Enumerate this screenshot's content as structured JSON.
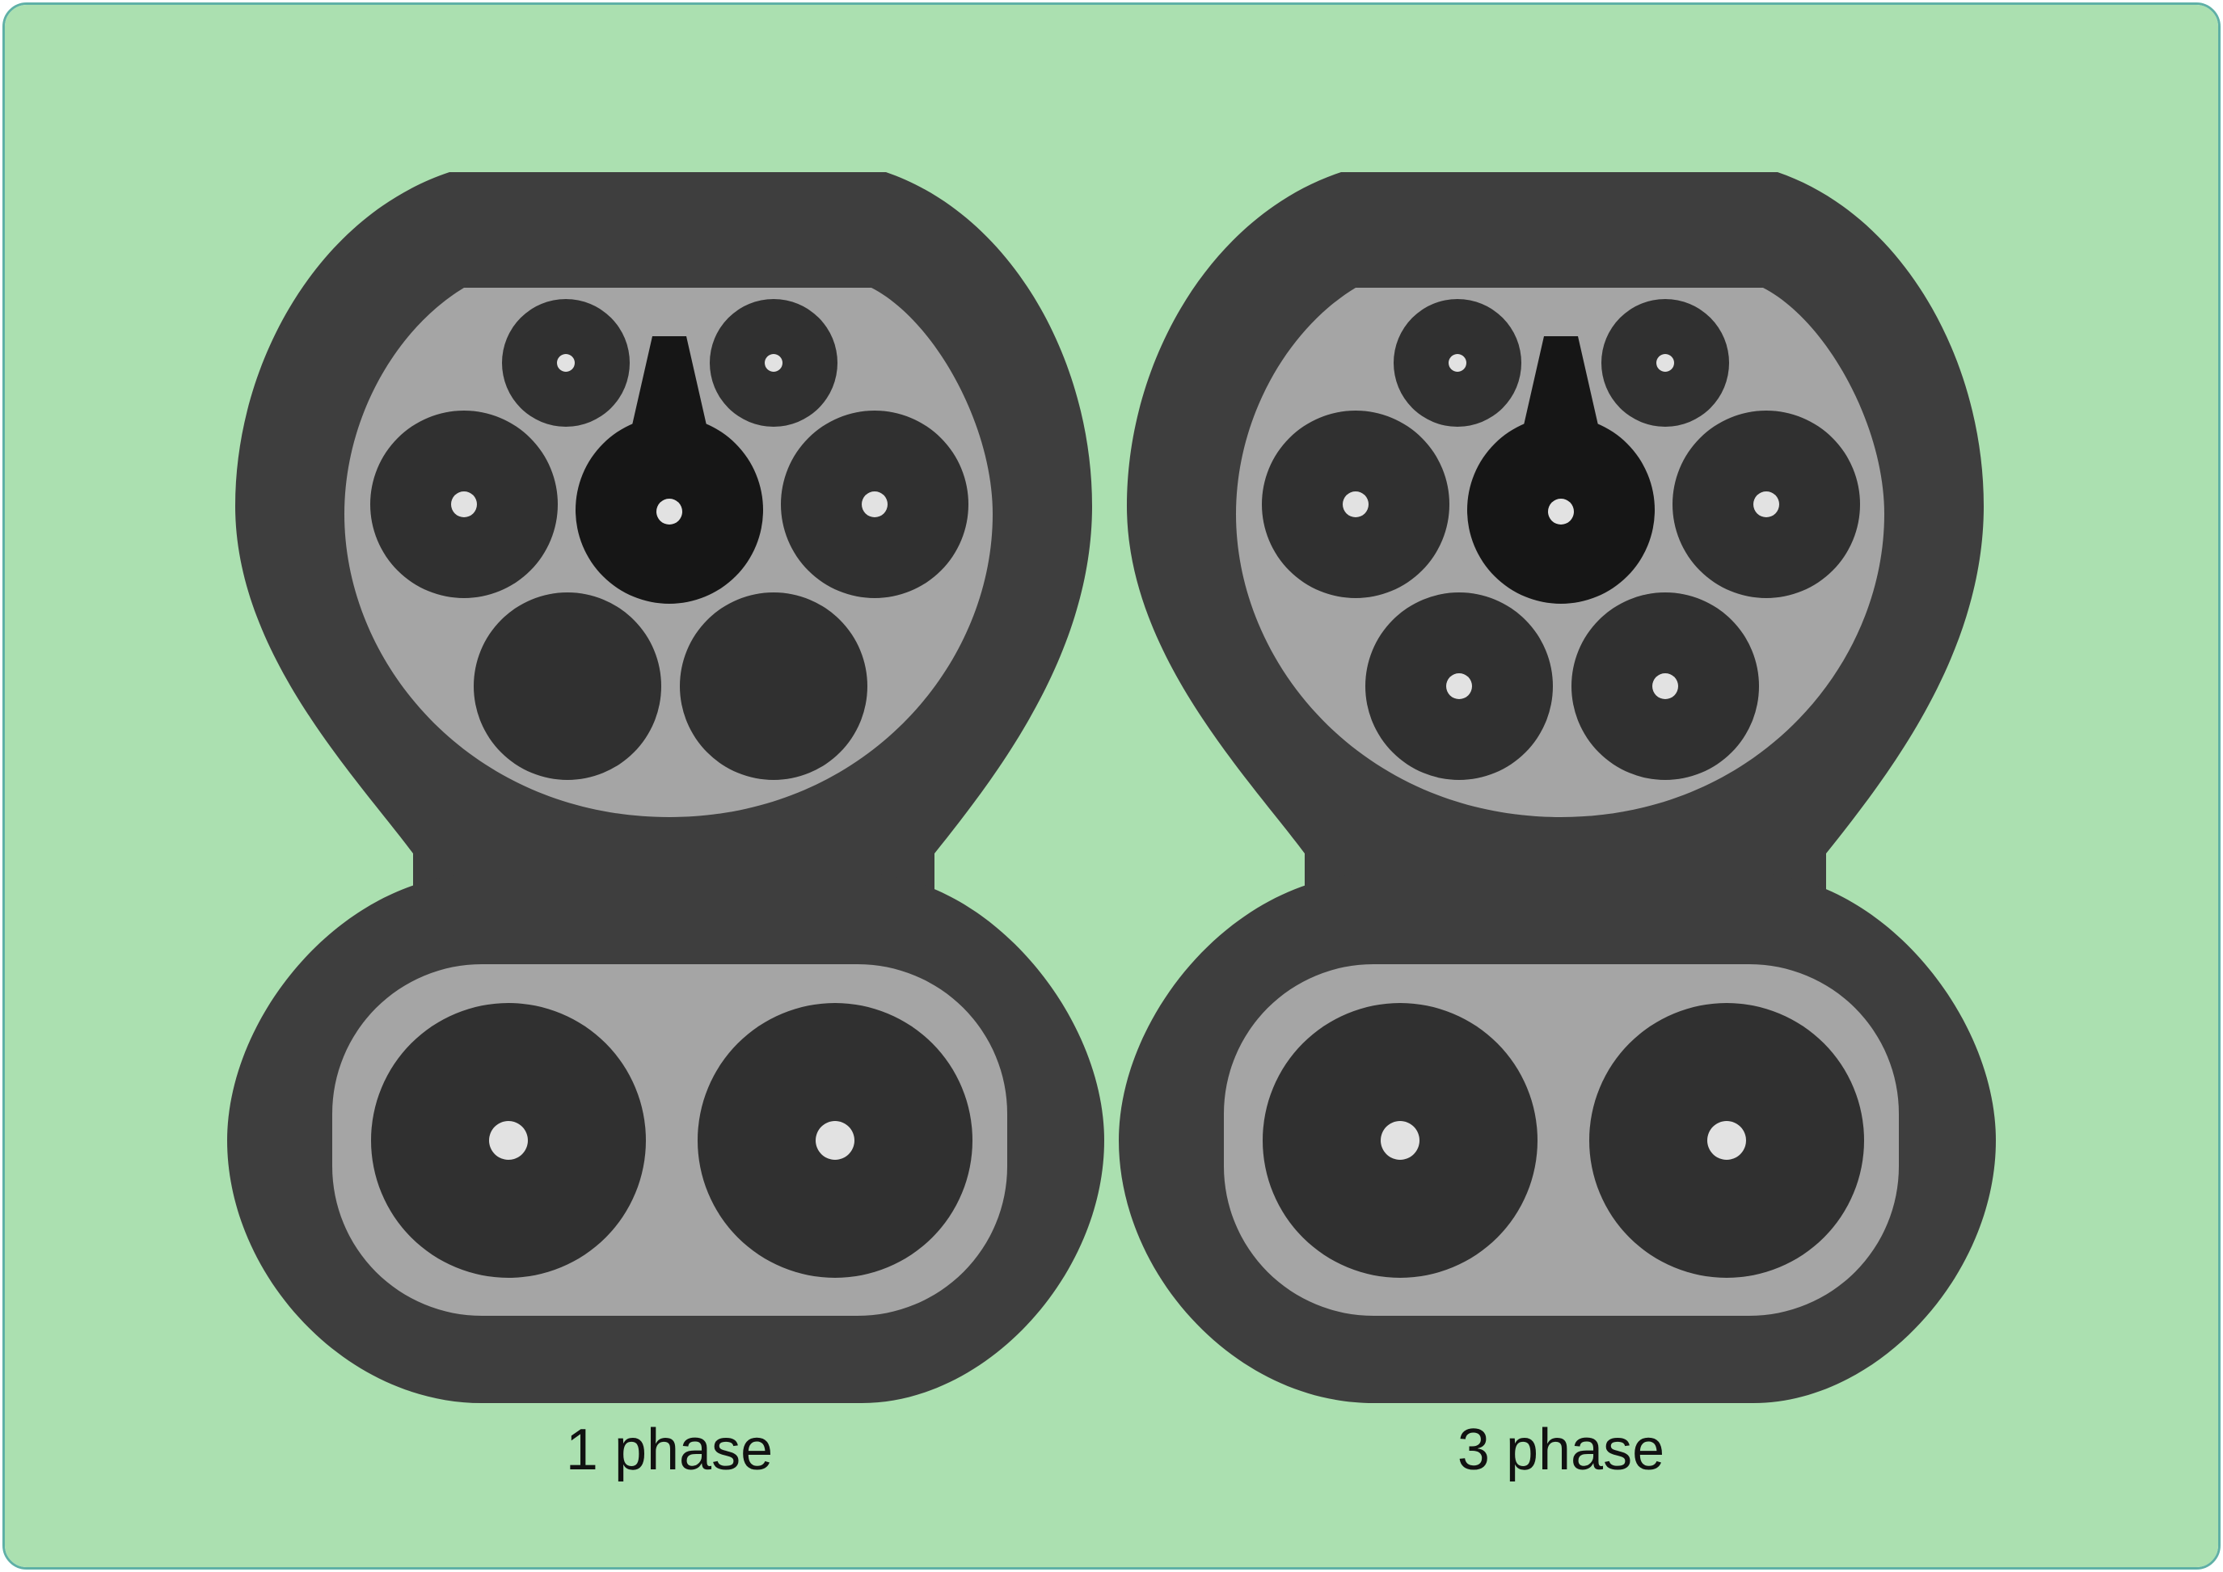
{
  "colors": {
    "background": "#abe0b0",
    "housing": "#3e3e3e",
    "socket_face": "#a5a5a5",
    "pin_socket": "#303030",
    "earth_socket": "#161616",
    "contact_dot": "#e2e2e2",
    "frame_border": "#5fb0a6"
  },
  "connectors": [
    {
      "label": "1 phase",
      "active_phase_pins": 1
    },
    {
      "label": "3 phase",
      "active_phase_pins": 3
    }
  ]
}
